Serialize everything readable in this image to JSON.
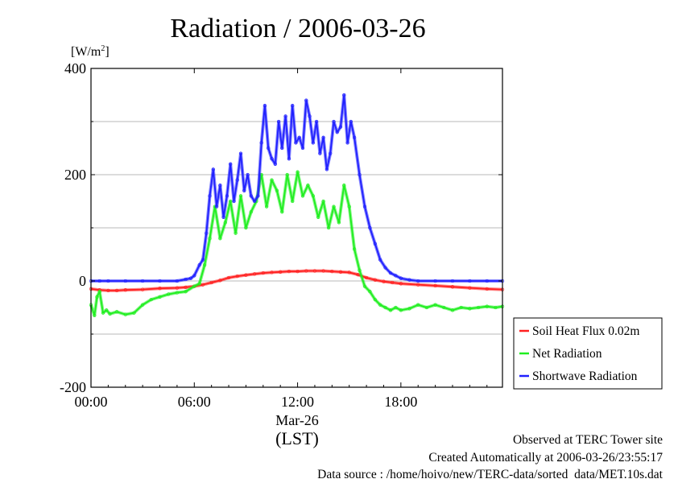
{
  "chart_data": {
    "type": "line",
    "title": "Radiation / 2006-03-26",
    "ylabel_unit": "[W/m",
    "ylabel_sup": "2",
    "ylabel_close": "]",
    "xlabel": "(LST)",
    "x_date_label": "Mar-26",
    "xlim_hours": [
      0,
      23.9
    ],
    "ylim": [
      -200,
      400
    ],
    "y_ticks": [
      {
        "value": 400,
        "label": "400"
      },
      {
        "value": 200,
        "label": "200"
      },
      {
        "value": 0,
        "label": "0"
      },
      {
        "value": -200,
        "label": "-200"
      }
    ],
    "y_grid": [
      300,
      100,
      -100
    ],
    "x_ticks": [
      {
        "value": 0,
        "label": "00:00"
      },
      {
        "value": 6,
        "label": "06:00"
      },
      {
        "value": 12,
        "label": "12:00"
      },
      {
        "value": 18,
        "label": "18:00"
      }
    ],
    "grid": true,
    "legend_position": "right",
    "series": [
      {
        "name": "Soil Heat Flux 0.02m",
        "color": "#ff2020",
        "x": [
          0,
          0.5,
          1,
          1.5,
          2,
          3,
          4,
          5,
          5.5,
          6,
          6.5,
          7,
          7.5,
          8,
          8.5,
          9,
          9.5,
          10,
          10.5,
          11,
          11.5,
          12,
          12.5,
          13,
          13.5,
          14,
          14.5,
          15,
          15.5,
          16,
          16.5,
          17,
          17.5,
          18,
          19,
          20,
          21,
          22,
          23,
          23.9
        ],
        "values": [
          -15,
          -17,
          -18,
          -18,
          -17,
          -16,
          -14,
          -13,
          -12,
          -10,
          -7,
          -3,
          1,
          6,
          9,
          11,
          13,
          15,
          16,
          17,
          18,
          18,
          19,
          19,
          19,
          18,
          17,
          16,
          12,
          6,
          2,
          -1,
          -3,
          -5,
          -7,
          -9,
          -11,
          -13,
          -15,
          -16
        ]
      },
      {
        "name": "Net Radiation",
        "color": "#20ee20",
        "x": [
          0,
          0.2,
          0.35,
          0.5,
          0.7,
          0.9,
          1.1,
          1.5,
          2,
          2.5,
          3,
          3.5,
          4,
          4.5,
          5,
          5.5,
          6,
          6.3,
          6.6,
          6.9,
          7.2,
          7.5,
          7.8,
          8.1,
          8.4,
          8.7,
          9,
          9.3,
          9.6,
          9.9,
          10.2,
          10.5,
          10.8,
          11.1,
          11.4,
          11.7,
          12,
          12.3,
          12.6,
          12.9,
          13.2,
          13.5,
          13.8,
          14.1,
          14.4,
          14.7,
          15,
          15.3,
          15.6,
          15.9,
          16.2,
          16.5,
          16.8,
          17.1,
          17.4,
          17.7,
          18,
          18.5,
          19,
          19.5,
          20,
          20.5,
          21,
          21.5,
          22,
          22.5,
          23,
          23.5,
          23.9
        ],
        "values": [
          -45,
          -65,
          -30,
          -20,
          -60,
          -55,
          -62,
          -58,
          -63,
          -60,
          -45,
          -35,
          -30,
          -25,
          -22,
          -20,
          -10,
          -5,
          30,
          80,
          140,
          80,
          110,
          150,
          90,
          160,
          100,
          130,
          150,
          200,
          140,
          190,
          170,
          130,
          200,
          150,
          205,
          160,
          180,
          160,
          120,
          150,
          100,
          140,
          110,
          180,
          140,
          60,
          20,
          -10,
          -20,
          -35,
          -45,
          -50,
          -55,
          -50,
          -55,
          -52,
          -45,
          -50,
          -45,
          -50,
          -55,
          -50,
          -52,
          -50,
          -48,
          -50,
          -48
        ]
      },
      {
        "name": "Shortwave Radiation",
        "color": "#2020ff",
        "x": [
          0,
          0.5,
          1,
          2,
          3,
          4,
          5,
          5.5,
          5.8,
          6,
          6.3,
          6.5,
          6.7,
          6.9,
          7.1,
          7.3,
          7.5,
          7.7,
          7.9,
          8.1,
          8.3,
          8.5,
          8.7,
          8.9,
          9.1,
          9.3,
          9.5,
          9.7,
          9.9,
          10.1,
          10.3,
          10.5,
          10.7,
          10.9,
          11.1,
          11.3,
          11.5,
          11.7,
          11.9,
          12.1,
          12.3,
          12.5,
          12.7,
          12.9,
          13.1,
          13.3,
          13.5,
          13.7,
          13.9,
          14.1,
          14.3,
          14.5,
          14.7,
          14.9,
          15.1,
          15.3,
          15.6,
          15.9,
          16.2,
          16.5,
          16.8,
          17.1,
          17.4,
          17.7,
          18,
          18.5,
          19,
          20,
          21,
          22,
          23,
          23.9
        ],
        "values": [
          0,
          0,
          0,
          0,
          0,
          0,
          0,
          3,
          5,
          10,
          30,
          40,
          90,
          160,
          210,
          140,
          180,
          120,
          160,
          220,
          150,
          190,
          240,
          170,
          200,
          160,
          150,
          160,
          260,
          330,
          250,
          230,
          220,
          300,
          250,
          310,
          230,
          330,
          260,
          270,
          250,
          340,
          310,
          260,
          300,
          240,
          270,
          210,
          240,
          300,
          280,
          290,
          350,
          260,
          300,
          270,
          200,
          140,
          100,
          70,
          40,
          25,
          15,
          10,
          5,
          2,
          0,
          0,
          0,
          0,
          0,
          0
        ]
      }
    ]
  },
  "footer": {
    "line1": "Observed at TERC Tower site",
    "line2": "Created Automatically at 2006-03-26/23:55:17",
    "line3": "Data source : /home/hoivo/new/TERC-data/sorted_data/MET.10s.dat"
  }
}
